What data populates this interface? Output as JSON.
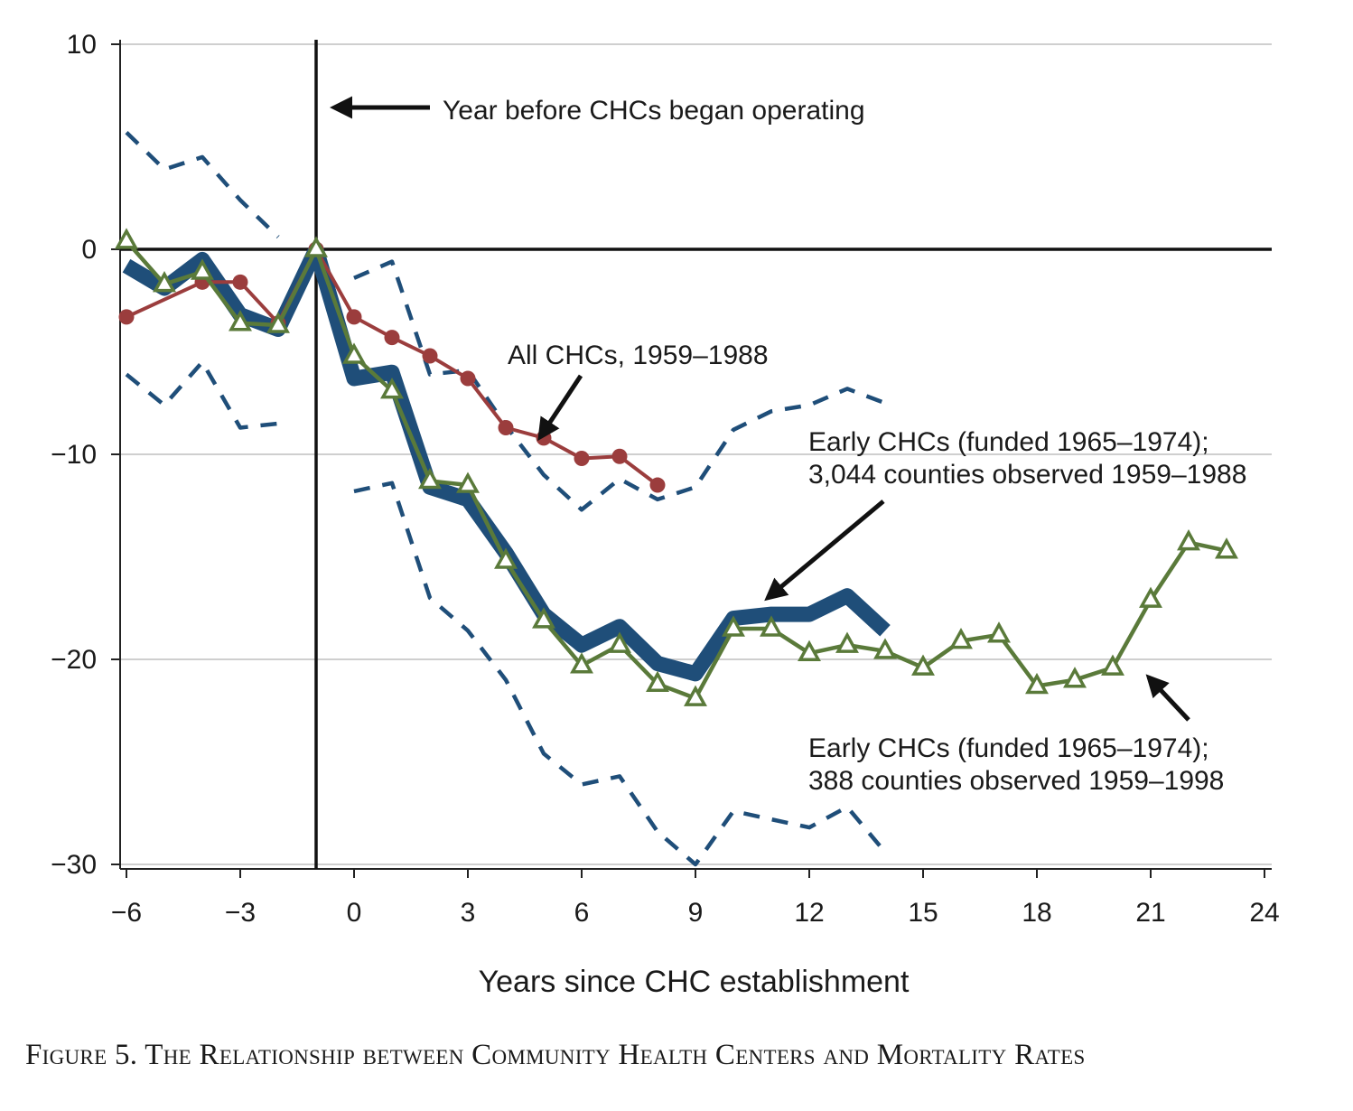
{
  "chart_data": {
    "type": "line",
    "xlabel": "Years since CHC establishment",
    "ylabel": "",
    "xlim": [
      -6,
      24
    ],
    "ylim": [
      -30,
      10
    ],
    "xticks": [
      -6,
      -3,
      0,
      3,
      6,
      9,
      12,
      15,
      18,
      21,
      24
    ],
    "xtick_labels": [
      "−6",
      "−3",
      "0",
      "3",
      "6",
      "9",
      "12",
      "15",
      "18",
      "21",
      "24"
    ],
    "yticks": [
      10,
      0,
      -10,
      -20,
      -30
    ],
    "ytick_labels": [
      "10",
      "0",
      "−10",
      "−20",
      "−30"
    ],
    "grid": "horizontal",
    "reference_lines": {
      "vertical_x": -1,
      "horizontal_y": 0
    },
    "series": [
      {
        "name": "Early CHCs (funded 1965–1974); 3,044 counties observed 1959–1988",
        "style": "thick",
        "color": "#1f4e79",
        "x": [
          -6,
          -5,
          -4,
          -3,
          -2,
          -1,
          0,
          1,
          2,
          3,
          4,
          5,
          6,
          7,
          8,
          9,
          10,
          11,
          12,
          13,
          14
        ],
        "y": [
          -0.8,
          -1.9,
          -0.5,
          -3.2,
          -3.9,
          0,
          -6.3,
          -6.0,
          -11.6,
          -12.2,
          -14.8,
          -17.8,
          -19.3,
          -18.4,
          -20.2,
          -20.7,
          -18.0,
          -17.8,
          -17.8,
          -16.9,
          -18.6
        ]
      },
      {
        "name": "Early CHCs (funded 1965–1974); 3,044 counties observed 1959–1988 upper CI",
        "style": "dashed",
        "color": "#1f4e79",
        "segments": [
          {
            "x": [
              -6,
              -5,
              -4,
              -3,
              -2
            ],
            "y": [
              5.7,
              3.9,
              4.5,
              2.4,
              0.6
            ]
          },
          {
            "x": [
              0,
              1,
              2,
              3,
              4,
              5,
              6,
              7,
              8,
              9,
              10,
              11,
              12,
              13,
              14
            ],
            "y": [
              -1.4,
              -0.6,
              -6.1,
              -5.9,
              -8.6,
              -11.0,
              -12.7,
              -11.2,
              -12.2,
              -11.6,
              -8.8,
              -7.9,
              -7.6,
              -6.8,
              -7.5
            ]
          }
        ]
      },
      {
        "name": "Early CHCs (funded 1965–1974); 3,044 counties observed 1959–1988 lower CI",
        "style": "dashed",
        "color": "#1f4e79",
        "segments": [
          {
            "x": [
              -6,
              -5,
              -4,
              -3,
              -2
            ],
            "y": [
              -6.1,
              -7.6,
              -5.5,
              -8.7,
              -8.5
            ]
          },
          {
            "x": [
              0,
              1,
              2,
              3,
              4,
              5,
              6,
              7,
              8,
              9,
              10,
              11,
              12,
              13,
              14
            ],
            "y": [
              -11.8,
              -11.4,
              -17.0,
              -18.6,
              -21.0,
              -24.6,
              -26.1,
              -25.7,
              -28.4,
              -30.0,
              -27.4,
              -27.8,
              -28.2,
              -27.2,
              -29.4
            ]
          }
        ]
      },
      {
        "name": "All CHCs, 1959–1988",
        "style": "circle-markers",
        "color": "#9b3d3d",
        "x": [
          -6,
          -4,
          -3,
          -2,
          -1,
          0,
          1,
          2,
          3,
          4,
          5,
          6,
          7,
          8
        ],
        "y": [
          -3.3,
          -1.6,
          -1.6,
          -3.6,
          0,
          -3.3,
          -4.3,
          -5.2,
          -6.3,
          -8.7,
          -9.2,
          -10.2,
          -10.1,
          -11.5
        ]
      },
      {
        "name": "Early CHCs (funded 1965–1974); 388 counties observed 1959–1998",
        "style": "triangle-markers",
        "color": "#5a7a3a",
        "x": [
          -6,
          -5,
          -4,
          -3,
          -2,
          -1,
          0,
          1,
          2,
          3,
          4,
          5,
          6,
          7,
          8,
          9,
          10,
          11,
          12,
          13,
          14,
          15,
          16,
          17,
          18,
          19,
          20,
          21,
          22,
          23
        ],
        "y": [
          0.4,
          -1.7,
          -1.1,
          -3.6,
          -3.7,
          0,
          -5.2,
          -6.9,
          -11.3,
          -11.5,
          -15.2,
          -18.1,
          -20.3,
          -19.3,
          -21.2,
          -21.9,
          -18.5,
          -18.5,
          -19.7,
          -19.3,
          -19.6,
          -20.4,
          -19.1,
          -18.8,
          -21.3,
          -21.0,
          -20.4,
          -17.1,
          -14.3,
          -14.7
        ]
      }
    ],
    "annotations": [
      {
        "lines": [
          "Year before CHCs began operating"
        ]
      },
      {
        "lines": [
          "All CHCs, 1959–1988"
        ]
      },
      {
        "lines": [
          "Early CHCs (funded 1965–1974);",
          "3,044 counties observed 1959–1988"
        ]
      },
      {
        "lines": [
          "Early CHCs (funded 1965–1974);",
          "388 counties observed 1959–1998"
        ]
      }
    ]
  },
  "caption": "Figure 5. The Relationship between Community Health Centers and Mortality Rates"
}
